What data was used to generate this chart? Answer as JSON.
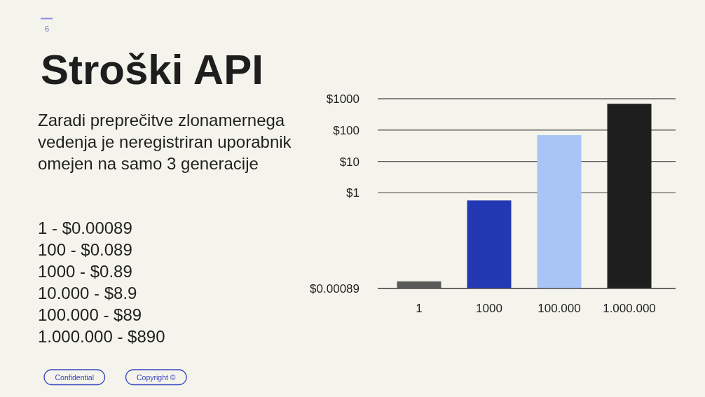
{
  "chart_data": {
    "type": "bar",
    "title": "Stroški API",
    "subtitle": "Zaradi preprečitve zlonamernega vedenja je neregistriran uporabnik omejen na samo 3 generacije",
    "annotations": [
      "6",
      "1 - $0.00089",
      "100 - $0.089",
      "1000 - $0.89",
      "10.000 - $8.9",
      "100.000 - $89",
      "1.000.000 - $890",
      "Confidential",
      "Copyright ©"
    ],
    "categories": [
      "1",
      "1000",
      "100.000",
      "1.000.000"
    ],
    "values": [
      0.0015,
      0.57,
      69,
      690
    ],
    "colors": [
      "#5a5a5a",
      "#2338b3",
      "#a8c5f5",
      "#1e1e1e"
    ],
    "log": true,
    "ylim": [
      0.00089,
      1000
    ],
    "yticks": [
      {
        "value": 0.00089,
        "label": "$0.00089"
      },
      {
        "value": 1,
        "label": "$1"
      },
      {
        "value": 10,
        "label": "$10"
      },
      {
        "value": 100,
        "label": "$100"
      },
      {
        "value": 1000,
        "label": "$1000"
      }
    ],
    "grid": "y"
  }
}
